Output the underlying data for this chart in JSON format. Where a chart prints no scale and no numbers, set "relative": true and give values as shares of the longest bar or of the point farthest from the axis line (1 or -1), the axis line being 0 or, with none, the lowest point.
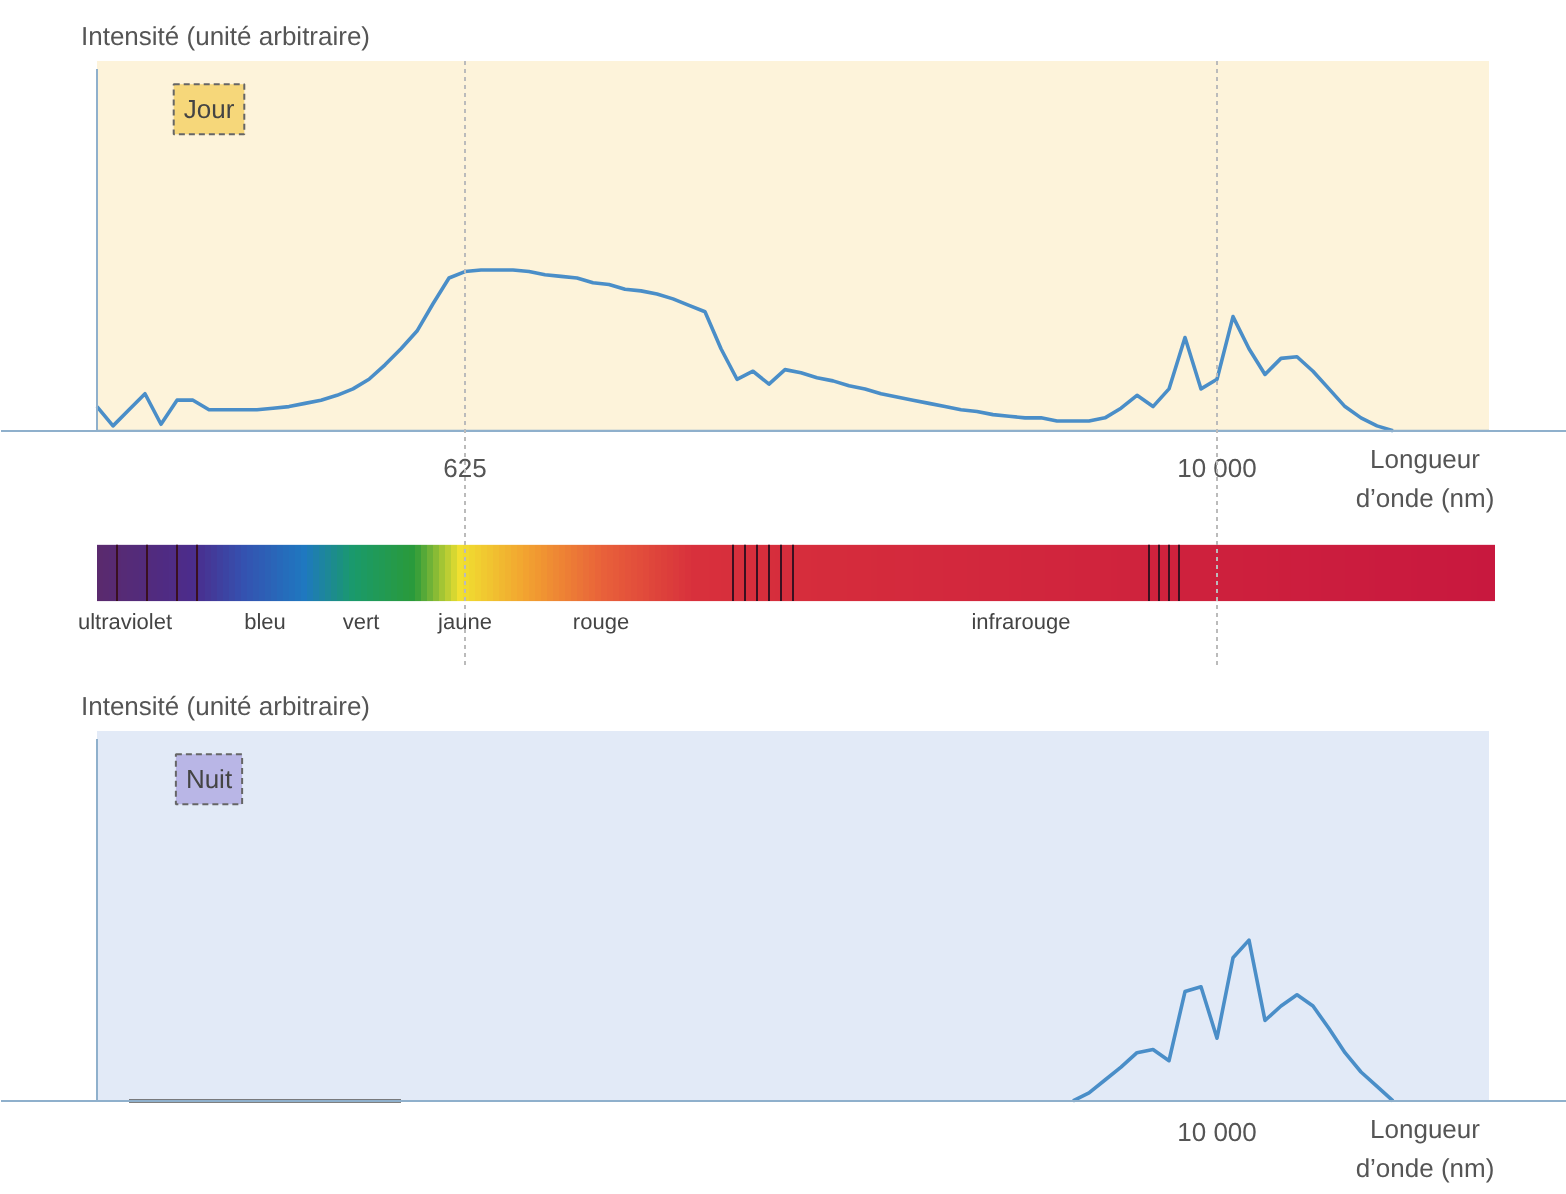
{
  "chart_data": [
    {
      "type": "line",
      "title": "Jour",
      "ylabel": "Intensité (unité arbitraire)",
      "xlabel": "Longueur d’onde (nm)",
      "relative": true,
      "categories": [
        null,
        null,
        null,
        null,
        null,
        null,
        null,
        null,
        null,
        null,
        null,
        null,
        null,
        null,
        null,
        null,
        null,
        null,
        null,
        null,
        null,
        null,
        null,
        "625",
        null,
        null,
        null,
        null,
        null,
        null,
        null,
        null,
        null,
        null,
        null,
        null,
        null,
        null,
        null,
        null,
        null,
        null,
        null,
        null,
        null,
        null,
        null,
        null,
        null,
        null,
        null,
        null,
        null,
        null,
        null,
        null,
        null,
        null,
        null,
        null,
        null,
        null,
        null,
        null,
        null,
        null,
        null,
        null,
        null,
        null,
        "10 000",
        null,
        null,
        null,
        null,
        null,
        null,
        null,
        null,
        null,
        null,
        null
      ],
      "series": [
        {
          "color": "#4a8ec8",
          "values": [
            0.15,
            0.03,
            0.13,
            0.23,
            0.04,
            0.19,
            0.19,
            0.13,
            0.13,
            0.13,
            0.13,
            0.14,
            0.15,
            0.17,
            0.19,
            0.22,
            0.26,
            0.32,
            0.41,
            0.51,
            0.62,
            0.79,
            0.95,
            0.99,
            1,
            1,
            1,
            0.99,
            0.97,
            0.96,
            0.95,
            0.92,
            0.91,
            0.88,
            0.87,
            0.85,
            0.82,
            0.78,
            0.74,
            0.51,
            0.32,
            0.37,
            0.29,
            0.38,
            0.36,
            0.33,
            0.31,
            0.28,
            0.26,
            0.23,
            0.21,
            0.19,
            0.17,
            0.15,
            0.13,
            0.12,
            0.1,
            0.09,
            0.08,
            0.08,
            0.06,
            0.06,
            0.06,
            0.08,
            0.14,
            0.22,
            0.15,
            0.26,
            0.58,
            0.26,
            0.32,
            0.71,
            0.51,
            0.35,
            0.45,
            0.46,
            0.37,
            0.26,
            0.15,
            0.08,
            0.03,
            0
          ]
        }
      ],
      "ref_lines": [
        {
          "axis": "x",
          "value": "625"
        },
        {
          "axis": "x",
          "value": "10 000"
        }
      ],
      "annotations": [
        "ultraviolet",
        "bleu",
        "vert",
        "jaune",
        "rouge",
        "infrarouge"
      ]
    },
    {
      "type": "line",
      "title": "Nuit",
      "ylabel": "Intensité (unité arbitraire)",
      "xlabel": "Longueur d’onde (nm)",
      "relative": true,
      "categories": [
        null,
        null,
        null,
        null,
        null,
        null,
        null,
        null,
        null,
        null,
        null,
        null,
        null,
        null,
        null,
        null,
        null,
        null,
        null,
        null,
        null,
        null,
        null,
        null,
        null,
        null,
        null,
        null,
        null,
        null,
        null,
        null,
        null,
        null,
        null,
        null,
        null,
        null,
        null,
        null,
        null,
        null,
        null,
        null,
        null,
        null,
        null,
        null,
        null,
        null,
        null,
        null,
        null,
        null,
        null,
        null,
        null,
        null,
        null,
        null,
        null,
        null,
        null,
        null,
        null,
        null,
        null,
        null,
        null,
        null,
        null,
        null,
        null,
        null,
        null,
        null,
        null,
        null,
        null,
        null,
        null,
        null
      ],
      "annotations": [
        "10 000"
      ],
      "series": [
        {
          "color": "#555555",
          "values": [
            null,
            null,
            0,
            0,
            0,
            0,
            0,
            0,
            0,
            0,
            0,
            0,
            0,
            0,
            0,
            0,
            0,
            0,
            0,
            0,
            null,
            null,
            null,
            null,
            null,
            null,
            null,
            null,
            null,
            null,
            null,
            null,
            null,
            null,
            null,
            null,
            null,
            null,
            null,
            null,
            null,
            null,
            null,
            null,
            null,
            null,
            null,
            null,
            null,
            null,
            null,
            null,
            null,
            null,
            null,
            null,
            null,
            null,
            null,
            null,
            null,
            null,
            null,
            null,
            null,
            null,
            null,
            null,
            null,
            null,
            null,
            null,
            null,
            null,
            null,
            null,
            null,
            null,
            null,
            null,
            null,
            null
          ]
        },
        {
          "color": "#4a8ec8",
          "values": [
            null,
            null,
            null,
            null,
            null,
            null,
            null,
            null,
            null,
            null,
            null,
            null,
            null,
            null,
            null,
            null,
            null,
            null,
            null,
            null,
            null,
            null,
            null,
            null,
            null,
            null,
            null,
            null,
            null,
            null,
            null,
            null,
            null,
            null,
            null,
            null,
            null,
            null,
            null,
            null,
            null,
            null,
            null,
            null,
            null,
            null,
            null,
            null,
            null,
            null,
            null,
            null,
            null,
            null,
            null,
            null,
            null,
            null,
            null,
            null,
            null,
            0,
            0.05,
            0.13,
            0.21,
            0.3,
            0.32,
            0.25,
            0.68,
            0.71,
            0.39,
            0.89,
            1,
            0.5,
            0.59,
            0.66,
            0.59,
            0.45,
            0.3,
            0.18,
            0.09,
            0
          ]
        }
      ]
    }
  ]
}
